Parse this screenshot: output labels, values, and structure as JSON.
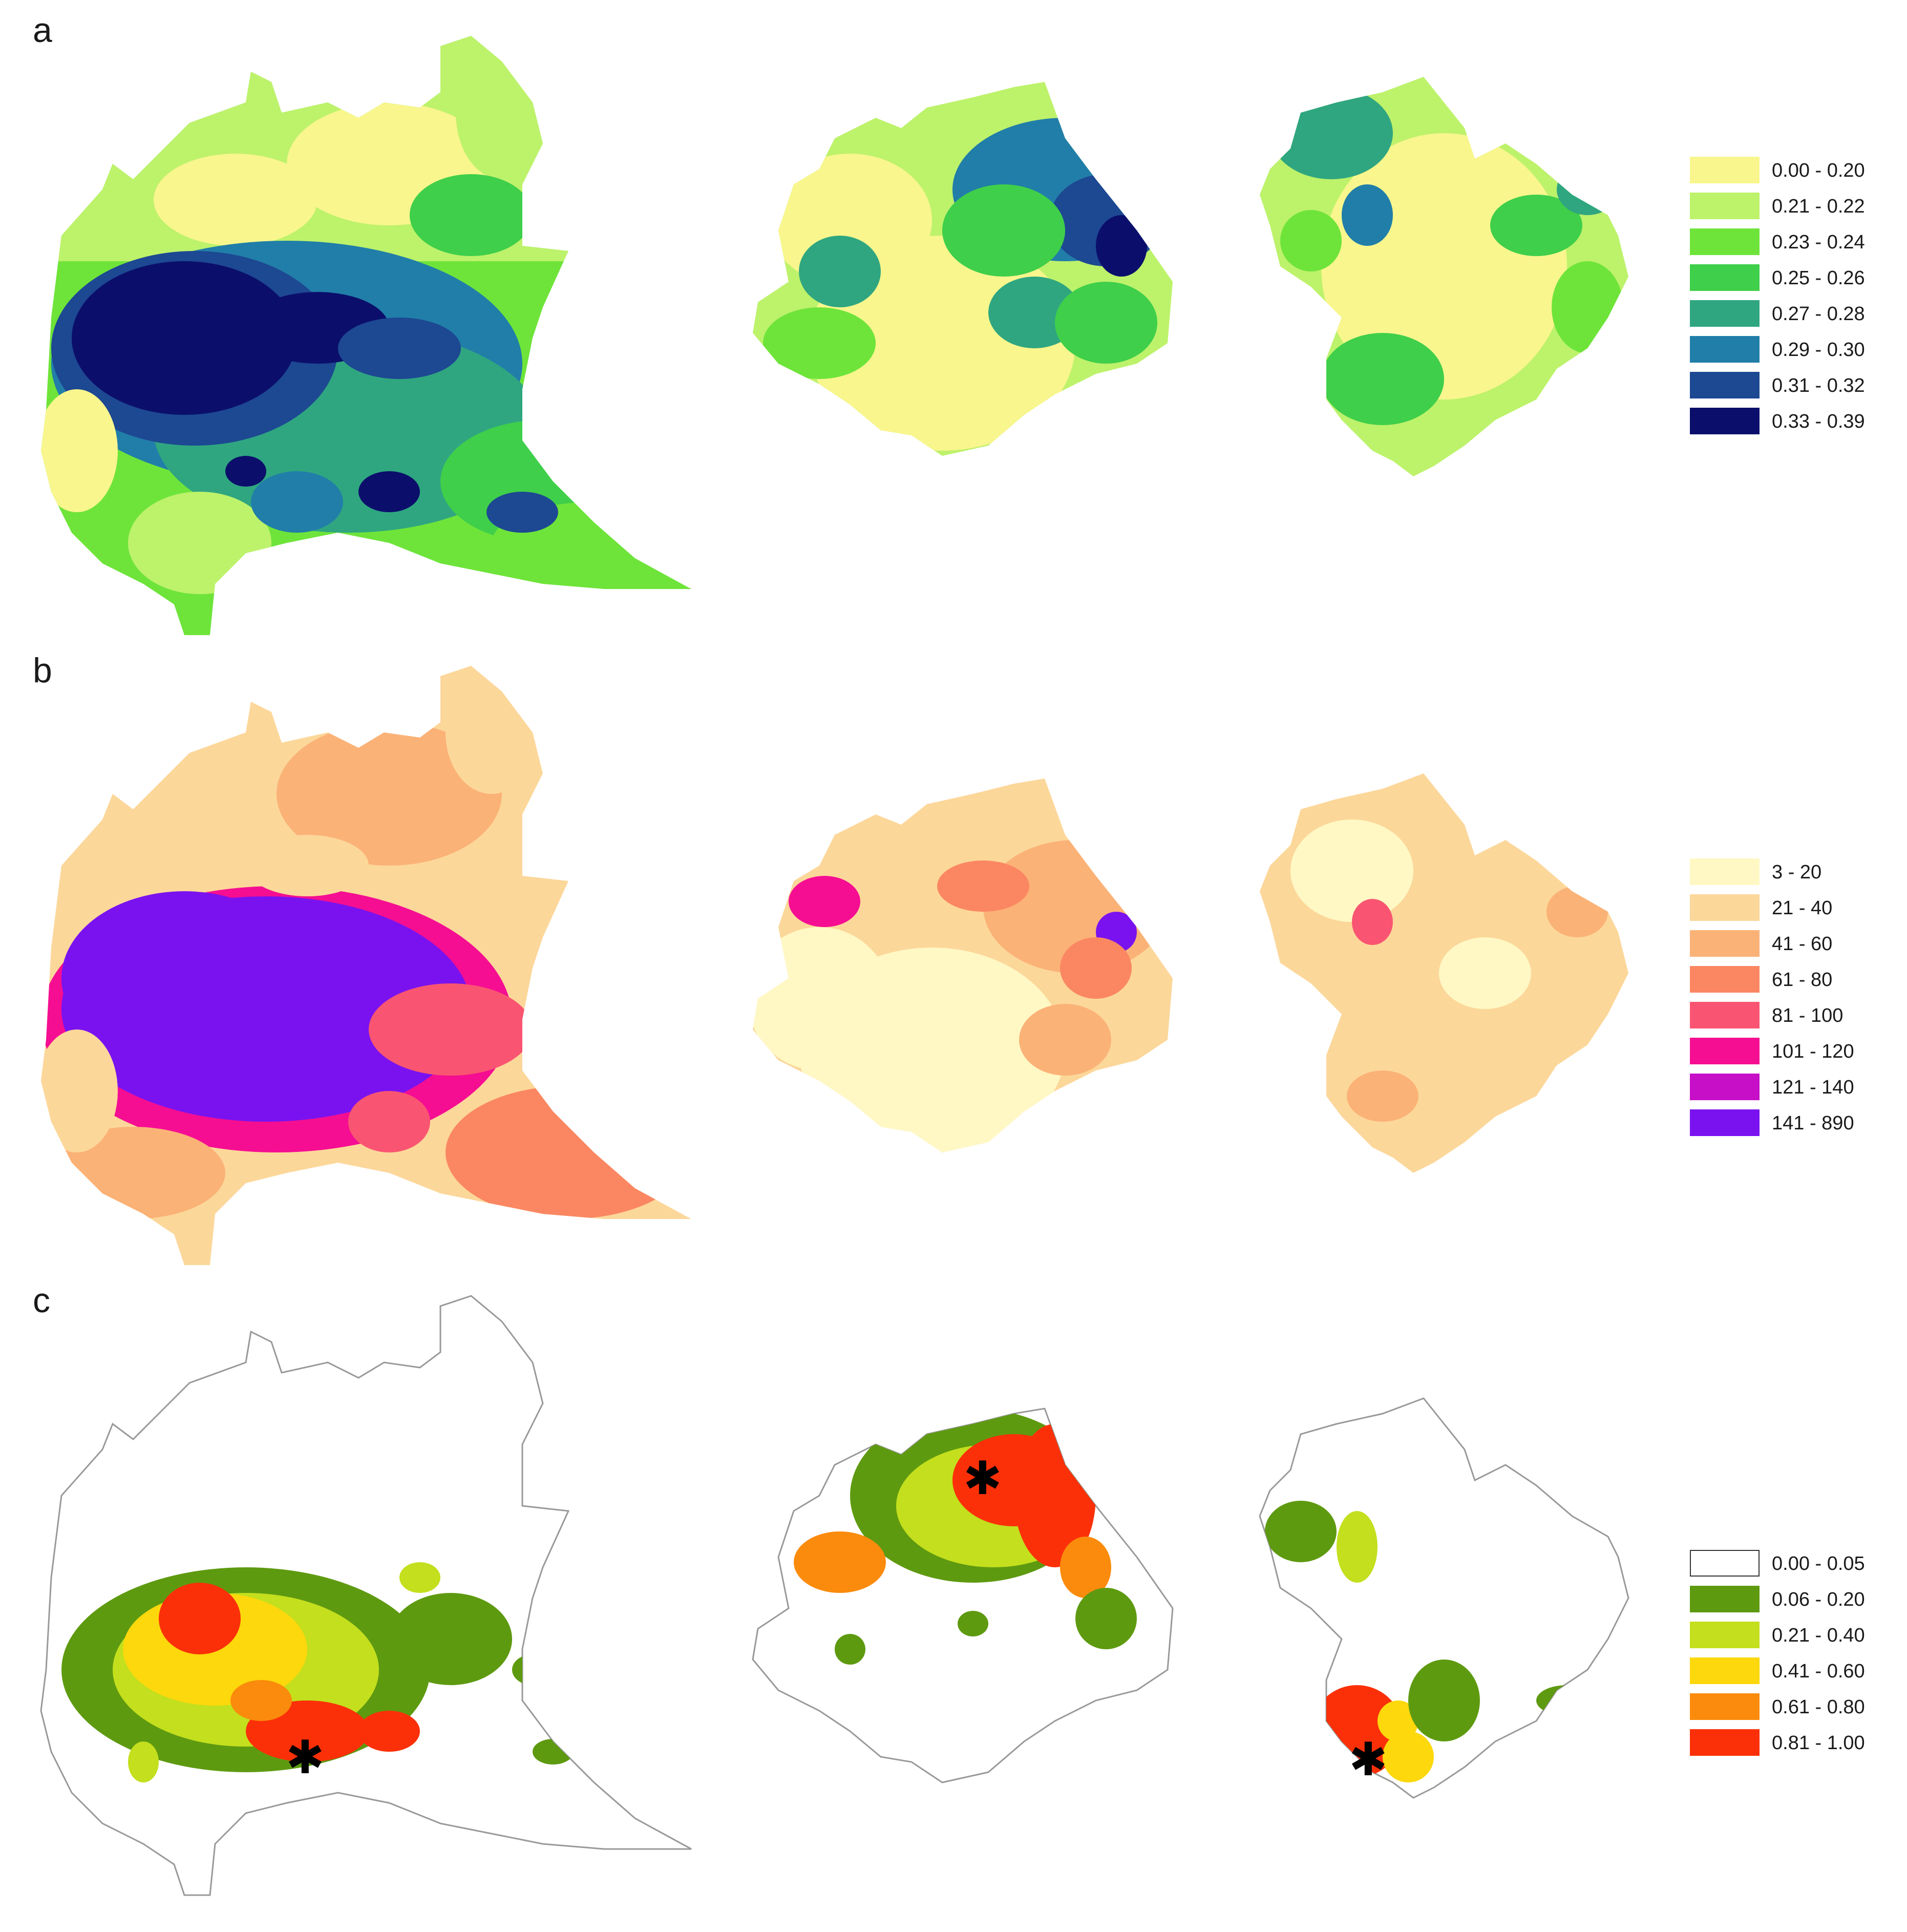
{
  "panels": [
    {
      "letter": "a",
      "legend": [
        {
          "label": "0.00 - 0.20",
          "color": "#f8f68d"
        },
        {
          "label": "0.21 - 0.22",
          "color": "#bdf26b"
        },
        {
          "label": "0.23 - 0.24",
          "color": "#6ee43a"
        },
        {
          "label": "0.25 - 0.26",
          "color": "#3fcf4a"
        },
        {
          "label": "0.27 - 0.28",
          "color": "#2fa680"
        },
        {
          "label": "0.29 - 0.30",
          "color": "#217ea8"
        },
        {
          "label": "0.31 - 0.32",
          "color": "#1d4892"
        },
        {
          "label": "0.33 - 0.39",
          "color": "#0b0f6b"
        }
      ]
    },
    {
      "letter": "b",
      "legend": [
        {
          "label": "3 - 20",
          "color": "#fff8c4"
        },
        {
          "label": "21 - 40",
          "color": "#fcd79a"
        },
        {
          "label": "41 - 60",
          "color": "#fbb277"
        },
        {
          "label": "61 - 80",
          "color": "#fb8762"
        },
        {
          "label": "81 - 100",
          "color": "#f95572"
        },
        {
          "label": "101 - 120",
          "color": "#f50e92"
        },
        {
          "label": "121 - 140",
          "color": "#c60fc7"
        },
        {
          "label": "141 - 890",
          "color": "#7a12ef"
        }
      ]
    },
    {
      "letter": "c",
      "legend": [
        {
          "label": "0.00 - 0.05",
          "color": "#ffffff"
        },
        {
          "label": "0.06 - 0.20",
          "color": "#5e9a10"
        },
        {
          "label": "0.21 - 0.40",
          "color": "#c3df1d"
        },
        {
          "label": "0.41 - 0.60",
          "color": "#fcd80c"
        },
        {
          "label": "0.61 - 0.80",
          "color": "#fb8b0c"
        },
        {
          "label": "0.81 - 1.00",
          "color": "#fb3008"
        }
      ]
    }
  ]
}
